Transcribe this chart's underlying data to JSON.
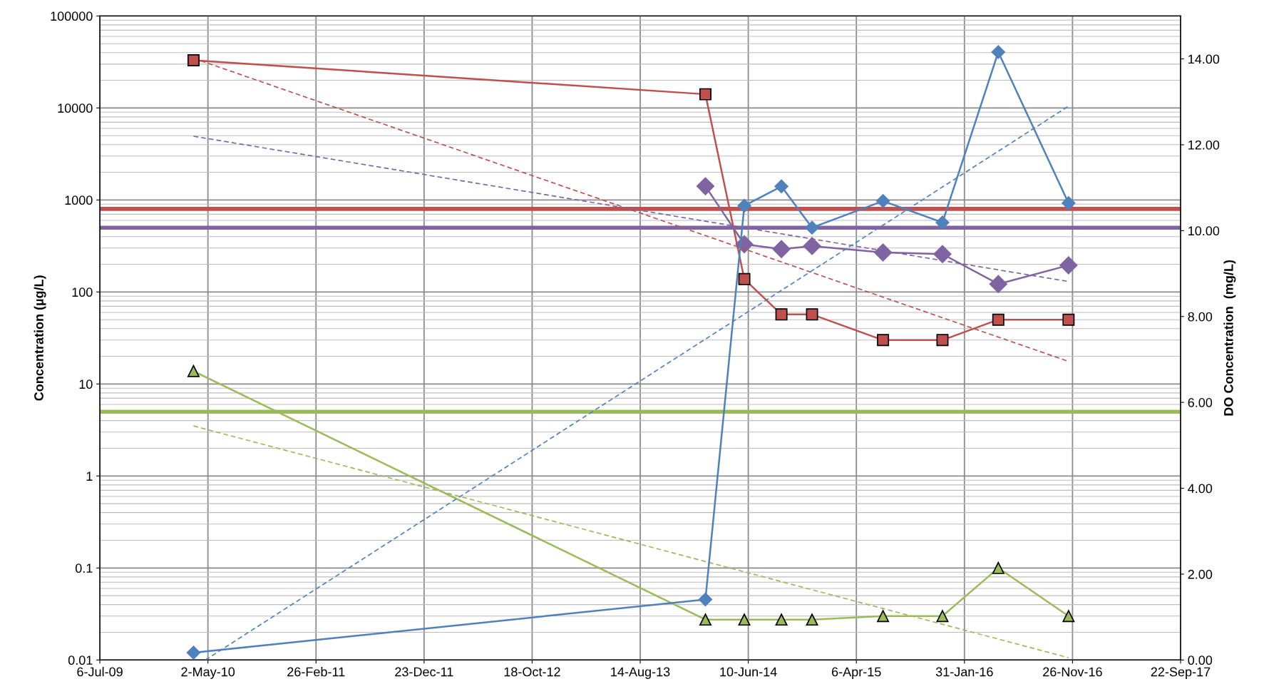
{
  "chart_data": {
    "type": "line",
    "ylabel": "Concentration (µg/L)",
    "y2label": "DO Concentration  (mg/L)",
    "log": "y",
    "grid": true,
    "xlim": [
      "2009-07-06",
      "2017-09-22"
    ],
    "xticks": [
      {
        "value": "2009-07-06",
        "label": "6-Jul-09"
      },
      {
        "value": "2010-05-02",
        "label": "2-May-10"
      },
      {
        "value": "2011-02-26",
        "label": "26-Feb-11"
      },
      {
        "value": "2011-12-23",
        "label": "23-Dec-11"
      },
      {
        "value": "2012-10-18",
        "label": "18-Oct-12"
      },
      {
        "value": "2013-08-14",
        "label": "14-Aug-13"
      },
      {
        "value": "2014-06-10",
        "label": "10-Jun-14"
      },
      {
        "value": "2015-04-06",
        "label": "6-Apr-15"
      },
      {
        "value": "2016-01-31",
        "label": "31-Jan-16"
      },
      {
        "value": "2016-11-26",
        "label": "26-Nov-16"
      },
      {
        "value": "2017-09-22",
        "label": "22-Sep-17"
      }
    ],
    "ylim": [
      0.01,
      100000
    ],
    "yticks": [
      0.01,
      0.1,
      1,
      10,
      100,
      1000,
      10000,
      100000
    ],
    "y2lim": [
      0,
      15
    ],
    "y2ticks": [
      {
        "value": 0,
        "label": "0.00"
      },
      {
        "value": 2,
        "label": "2.00"
      },
      {
        "value": 4,
        "label": "4.00"
      },
      {
        "value": 6,
        "label": "6.00"
      },
      {
        "value": 8,
        "label": "8.00"
      },
      {
        "value": 10,
        "label": "10.00"
      },
      {
        "value": 12,
        "label": "12.00"
      },
      {
        "value": 14,
        "label": "14.00"
      }
    ],
    "series": [
      {
        "color": "#c0504d",
        "marker": "square",
        "x": [
          "2010-03-23",
          "2014-02-11",
          "2014-05-30",
          "2014-09-10",
          "2014-12-04",
          "2015-06-19",
          "2015-12-01",
          "2016-05-04",
          "2016-11-15"
        ],
        "values": [
          33000,
          14100,
          138,
          57,
          57,
          30,
          30,
          50,
          50
        ]
      },
      {
        "color": "#8064a2",
        "marker": "diamond",
        "x": [
          "2014-02-11",
          "2014-05-30",
          "2014-09-10",
          "2014-12-04",
          "2015-06-19",
          "2015-12-01",
          "2016-05-04",
          "2016-11-15"
        ],
        "values": [
          1410,
          330,
          292,
          316,
          269,
          258,
          122,
          195
        ]
      },
      {
        "color": "#9bbb59",
        "marker": "triangle",
        "x": [
          "2010-03-23",
          "2014-02-11",
          "2014-05-30",
          "2014-09-10",
          "2014-12-04",
          "2015-06-19",
          "2015-12-01",
          "2016-05-04",
          "2016-11-15"
        ],
        "values": [
          13.8,
          0.0275,
          0.0275,
          0.0275,
          0.0275,
          0.03,
          0.03,
          0.1,
          0.03
        ]
      },
      {
        "color": "#4f81bd",
        "marker": "diamond",
        "axis": "y2",
        "x": [
          "2010-03-23",
          "2014-02-11",
          "2014-05-30",
          "2014-09-10",
          "2014-12-04",
          "2015-06-19",
          "2015-12-01",
          "2016-05-04",
          "2016-11-15"
        ],
        "values": [
          0.17,
          1.41,
          10.58,
          11.03,
          10.07,
          10.69,
          10.19,
          14.16,
          10.64
        ]
      },
      {
        "color": "#c0504d",
        "marker": "none",
        "line_style": "dashed",
        "x": [
          "2010-03-23",
          "2016-11-15"
        ],
        "values": [
          34700,
          17.6
        ]
      },
      {
        "color": "#8064a2",
        "marker": "none",
        "line_style": "dashed",
        "x": [
          "2010-03-23",
          "2016-11-15"
        ],
        "values": [
          4930,
          130
        ]
      },
      {
        "color": "#9bbb59",
        "marker": "none",
        "line_style": "dashed",
        "x": [
          "2010-03-23",
          "2016-11-15"
        ],
        "values": [
          3.5,
          0.0106
        ]
      },
      {
        "color": "#4f81bd",
        "marker": "none",
        "line_style": "dashed",
        "axis": "y2",
        "x": [
          "2010-04-25",
          "2016-11-15"
        ],
        "values": [
          0,
          12.9
        ]
      }
    ],
    "ref_lines": [
      {
        "axis": "y",
        "value": 800,
        "color": "#c0504d"
      },
      {
        "axis": "y",
        "value": 500,
        "color": "#8064a2"
      },
      {
        "axis": "y",
        "value": 5,
        "color": "#9bbb59"
      }
    ]
  }
}
